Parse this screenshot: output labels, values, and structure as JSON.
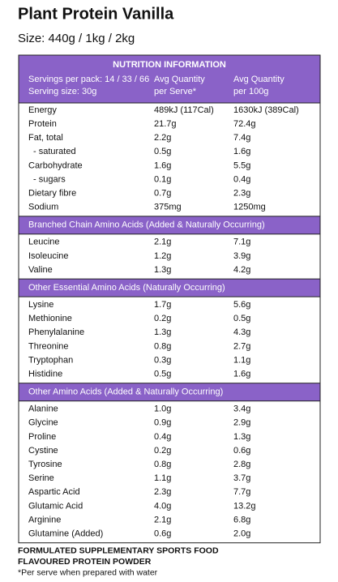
{
  "title": "Plant Protein Vanilla",
  "size": "Size: 440g / 1kg / 2kg",
  "table": {
    "heading": "NUTRITION INFORMATION",
    "header": [
      [
        "Servings per pack: 14 / 33 / 66",
        "Avg Quantity",
        "Avg Quantity"
      ],
      [
        "Serving size: 30g",
        "per Serve*",
        "per 100g"
      ]
    ],
    "sections": [
      {
        "rows": [
          [
            "Energy",
            "489kJ (117Cal)",
            "1630kJ (389Cal)"
          ],
          [
            "Protein",
            "21.7g",
            "72.4g"
          ],
          [
            "Fat, total",
            "2.2g",
            "7.4g"
          ],
          [
            "- saturated",
            "0.5g",
            "1.6g"
          ],
          [
            "Carbohydrate",
            "1.6g",
            "5.5g"
          ],
          [
            "- sugars",
            "0.1g",
            "0.4g"
          ],
          [
            "Dietary fibre",
            "0.7g",
            "2.3g"
          ],
          [
            "Sodium",
            "375mg",
            "1250mg"
          ]
        ]
      },
      {
        "heading": "Branched Chain Amino Acids (Added & Naturally Occurring)",
        "rows": [
          [
            "Leucine",
            "2.1g",
            "7.1g"
          ],
          [
            "Isoleucine",
            "1.2g",
            "3.9g"
          ],
          [
            "Valine",
            "1.3g",
            "4.2g"
          ]
        ]
      },
      {
        "heading": "Other Essential Amino Acids (Naturally Occurring)",
        "rows": [
          [
            "Lysine",
            "1.7g",
            "5.6g"
          ],
          [
            "Methionine",
            "0.2g",
            "0.5g"
          ],
          [
            "Phenylalanine",
            "1.3g",
            "4.3g"
          ],
          [
            "Threonine",
            "0.8g",
            "2.7g"
          ],
          [
            "Tryptophan",
            "0.3g",
            "1.1g"
          ],
          [
            "Histidine",
            "0.5g",
            "1.6g"
          ]
        ]
      },
      {
        "heading": "Other Amino Acids (Added & Naturally Occurring)",
        "rows": [
          [
            "Alanine",
            "1.0g",
            "3.4g"
          ],
          [
            "Glycine",
            "0.9g",
            "2.9g"
          ],
          [
            "Proline",
            "0.4g",
            "1.3g"
          ],
          [
            "Cystine",
            "0.2g",
            "0.6g"
          ],
          [
            "Tyrosine",
            "0.8g",
            "2.8g"
          ],
          [
            "Serine",
            "1.1g",
            "3.7g"
          ],
          [
            "Aspartic Acid",
            "2.3g",
            "7.7g"
          ],
          [
            "Glutamic Acid",
            "4.0g",
            "13.2g"
          ],
          [
            "Arginine",
            "2.1g",
            "6.8g"
          ],
          [
            "Glutamine (Added)",
            "0.6g",
            "2.0g"
          ]
        ]
      }
    ]
  },
  "footer": [
    "FORMULATED SUPPLEMENTARY SPORTS FOOD",
    "FLAVOURED PROTEIN POWDER",
    "*Per serve when prepared with water"
  ]
}
